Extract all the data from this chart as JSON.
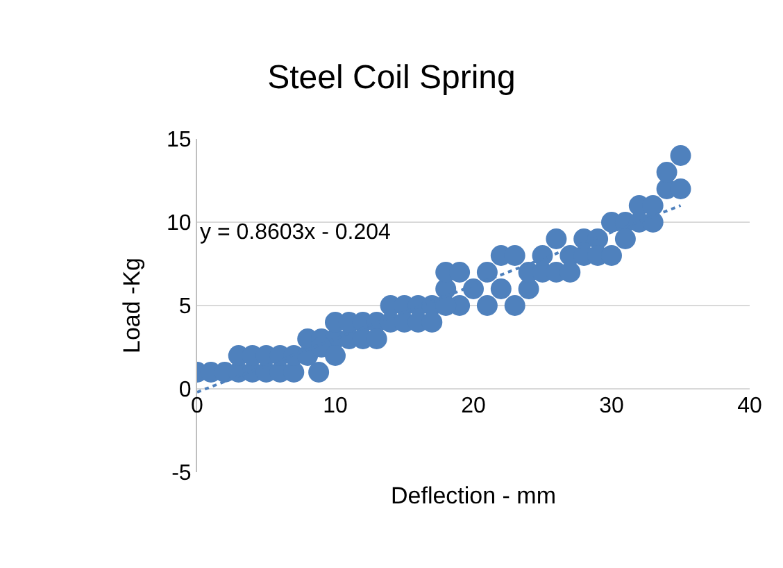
{
  "chart_data": {
    "type": "scatter",
    "title": "Steel Coil Spring",
    "xlabel": "Deflection - mm",
    "ylabel": "Load -Kg",
    "xlim": [
      0,
      40
    ],
    "xticks": [
      0,
      10,
      20,
      30,
      40
    ],
    "ylim": [
      -5,
      15
    ],
    "yticks": [
      -5,
      0,
      5,
      10,
      15
    ],
    "grid": "y",
    "marker": "circle",
    "annotations": [
      "y = 0.8603x - 0.204"
    ],
    "series": [
      {
        "color": "#4f81bd",
        "x": [
          0,
          1,
          2,
          3,
          4,
          5,
          6,
          7,
          8.8,
          3,
          4,
          5,
          6,
          7,
          8,
          8,
          9,
          10,
          11,
          9,
          10,
          10,
          11,
          12,
          13,
          12,
          13,
          14,
          15,
          16,
          17,
          14,
          15,
          16,
          17,
          18,
          18,
          19,
          19,
          18,
          20,
          21,
          21,
          22,
          22,
          23,
          23,
          24,
          24,
          25,
          25,
          26,
          26,
          27,
          27,
          28,
          28,
          29,
          29,
          30,
          30,
          31,
          31,
          32,
          32,
          33,
          33,
          34,
          34,
          35,
          35
        ],
        "values": [
          1,
          1,
          1,
          1,
          1,
          1,
          1,
          1,
          1,
          2,
          2,
          2,
          2,
          2,
          2,
          3,
          3,
          3,
          3,
          2.5,
          2,
          4,
          4,
          4,
          4,
          3,
          3,
          5,
          5,
          5,
          5,
          4,
          4,
          4,
          4,
          6,
          7,
          7,
          5,
          5,
          6,
          5,
          7,
          8,
          6,
          8,
          5,
          6,
          7,
          7,
          8,
          9,
          7,
          8,
          7,
          8,
          9,
          9,
          8,
          10,
          8,
          10,
          9,
          11,
          10,
          11,
          10,
          12,
          13,
          12,
          14
        ]
      },
      {
        "type": "line",
        "line_style": "dotted",
        "marker": "none",
        "color": "#4f81bd",
        "x": [
          0,
          35
        ],
        "values": [
          -0.2,
          11
        ]
      }
    ]
  }
}
